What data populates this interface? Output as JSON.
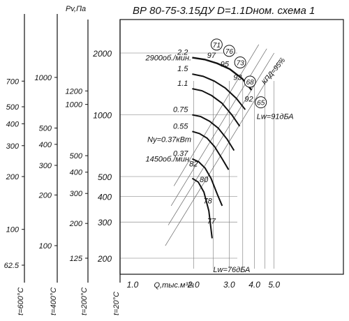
{
  "chart_data": {
    "type": "line",
    "title": "ВР 80-75-3.15ДУ D=1.1Dном. схема 1",
    "xlabel": "Q,тыс.м³/ч",
    "x_scale": "log",
    "x_ticks": [
      "1.0",
      "2.0",
      "3.0",
      "4.0",
      "5.0"
    ],
    "main_y_ticks": [
      "2000",
      "1000",
      "500",
      "400",
      "300",
      "200"
    ],
    "pv_label": "Pv,Па",
    "scale_columns": [
      {
        "label": "t=600°C",
        "ticks": [
          "700",
          "500",
          "400",
          "300",
          "200",
          "100",
          "62.5"
        ]
      },
      {
        "label": "t=400°C",
        "ticks": [
          "1000",
          "500",
          "400",
          "300",
          "200",
          "100"
        ]
      },
      {
        "label": "t=200°C",
        "ticks": [
          "1200",
          "1000",
          "500",
          "400",
          "300",
          "200",
          "125"
        ]
      },
      {
        "label": "t=20°C",
        "ticks": []
      }
    ],
    "speed_labels": {
      "high": "2900об./мин.",
      "low": "1450об./мин."
    },
    "power_label_low": "Ny=0.37кВт",
    "sound_labels": {
      "high": "Lw=91дБА",
      "low": "Lw=76дБА"
    },
    "efficiency_label": "КПД=95%",
    "series": [
      {
        "name": "2.2",
        "x": [
          1.97,
          2.27,
          2.62,
          3.02,
          3.48,
          3.87
        ],
        "y": [
          1900,
          1860,
          1780,
          1670,
          1500,
          1320
        ]
      },
      {
        "name": "1.5",
        "x": [
          1.97,
          2.23,
          2.53,
          2.87,
          3.26,
          3.6
        ],
        "y": [
          1580,
          1540,
          1460,
          1350,
          1200,
          1060
        ]
      },
      {
        "name": "1.1",
        "x": [
          1.97,
          2.2,
          2.46,
          2.76,
          3.09,
          3.38
        ],
        "y": [
          1340,
          1310,
          1240,
          1140,
          1000,
          880
        ]
      },
      {
        "name": "0.75",
        "x": [
          1.97,
          2.17,
          2.4,
          2.65,
          2.93,
          3.17
        ],
        "y": [
          1000,
          980,
          930,
          860,
          760,
          670
        ]
      },
      {
        "name": "0.55",
        "x": [
          1.97,
          2.14,
          2.33,
          2.54,
          2.77,
          2.98
        ],
        "y": [
          830,
          810,
          770,
          700,
          610,
          540
        ]
      },
      {
        "name": "0.37",
        "x": [
          1.97,
          2.12,
          2.28,
          2.44,
          2.62,
          2.77
        ],
        "y": [
          610,
          590,
          550,
          490,
          410,
          360
        ]
      },
      {
        "name": "",
        "x": [
          1.97,
          2.11,
          2.25,
          2.38,
          2.47
        ],
        "y": [
          490,
          470,
          420,
          340,
          250
        ]
      }
    ],
    "efficiency_points_high": [
      "97",
      "95",
      "93",
      "92"
    ],
    "efficiency_points_low": [
      "82",
      "80",
      "78",
      "77"
    ],
    "efficiency_markers": [
      "71",
      "76",
      "73",
      "68",
      "65"
    ]
  }
}
